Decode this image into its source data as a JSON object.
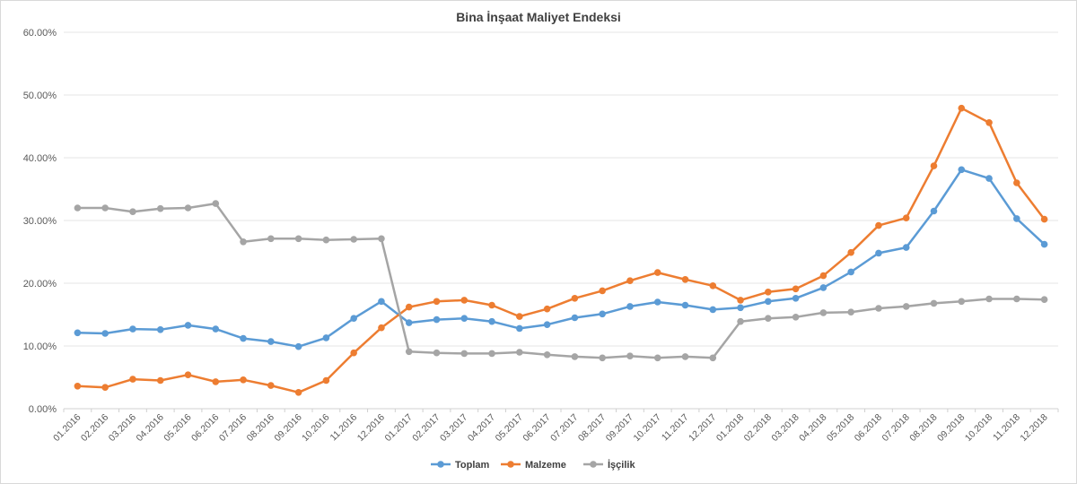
{
  "chart_data": {
    "type": "line",
    "title": "Bina İnşaat Maliyet Endeksi",
    "xlabel": "",
    "ylabel": "",
    "ylim": [
      0,
      60
    ],
    "y_tick_values": [
      0,
      10,
      20,
      30,
      40,
      50,
      60
    ],
    "y_tick_labels": [
      "0.00%",
      "10.00%",
      "20.00%",
      "30.00%",
      "40.00%",
      "50.00%",
      "60.00%"
    ],
    "grid": true,
    "legend": "bottom",
    "categories": [
      "01.2016",
      "02.2016",
      "03.2016",
      "04.2016",
      "05.2016",
      "06.2016",
      "07.2016",
      "08.2016",
      "09.2016",
      "10.2016",
      "11.2016",
      "12.2016",
      "01.2017",
      "02.2017",
      "03.2017",
      "04.2017",
      "05.2017",
      "06.2017",
      "07.2017",
      "08.2017",
      "09.2017",
      "10.2017",
      "11.2017",
      "12.2017",
      "01.2018",
      "02.2018",
      "03.2018",
      "04.2018",
      "05.2018",
      "06.2018",
      "07.2018",
      "08.2018",
      "09.2018",
      "10.2018",
      "11.2018",
      "12.2018"
    ],
    "series": [
      {
        "name": "Toplam",
        "color": "#5b9bd5",
        "values": [
          12.1,
          12.0,
          12.7,
          12.6,
          13.3,
          12.7,
          11.2,
          10.7,
          9.9,
          11.3,
          14.4,
          17.1,
          13.7,
          14.2,
          14.4,
          13.9,
          12.8,
          13.4,
          14.5,
          15.1,
          16.3,
          17.0,
          16.5,
          15.8,
          16.1,
          17.1,
          17.6,
          19.3,
          21.8,
          24.8,
          25.7,
          31.5,
          38.1,
          36.7,
          30.3,
          26.2
        ]
      },
      {
        "name": "Malzeme",
        "color": "#ed7d31",
        "values": [
          3.6,
          3.4,
          4.7,
          4.5,
          5.4,
          4.3,
          4.6,
          3.7,
          2.6,
          4.5,
          8.9,
          12.9,
          16.2,
          17.1,
          17.3,
          16.5,
          14.7,
          15.9,
          17.6,
          18.8,
          20.4,
          21.7,
          20.6,
          19.6,
          17.3,
          18.6,
          19.1,
          21.2,
          24.9,
          29.2,
          30.4,
          38.7,
          47.9,
          45.6,
          36.0,
          30.2
        ]
      },
      {
        "name": "İşçilik",
        "color": "#a5a5a5",
        "values": [
          32.0,
          32.0,
          31.4,
          31.9,
          32.0,
          32.7,
          26.6,
          27.1,
          27.1,
          26.9,
          27.0,
          27.1,
          9.1,
          8.9,
          8.8,
          8.8,
          9.0,
          8.6,
          8.3,
          8.1,
          8.4,
          8.1,
          8.3,
          8.1,
          13.9,
          14.4,
          14.6,
          15.3,
          15.4,
          16.0,
          16.3,
          16.8,
          17.1,
          17.5,
          17.5,
          17.4
        ]
      }
    ]
  }
}
